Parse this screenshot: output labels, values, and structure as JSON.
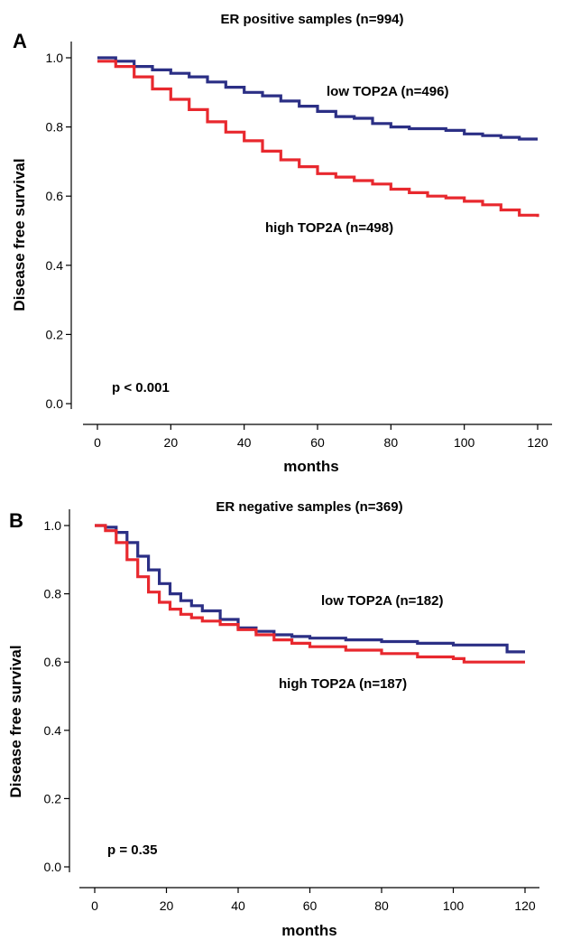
{
  "chart_data": [
    {
      "type": "line",
      "panel": "A",
      "title": "ER positive samples  (n=994)",
      "xlabel": "months",
      "ylabel": "Disease free survival",
      "xlim": [
        0,
        120
      ],
      "ylim": [
        0.0,
        1.0
      ],
      "xticks": [
        "0",
        "20",
        "40",
        "60",
        "80",
        "100",
        "120"
      ],
      "yticks": [
        "0.0",
        "0.2",
        "0.4",
        "0.6",
        "0.8",
        "1.0"
      ],
      "annotation": "p < 0.001",
      "grid": false,
      "series": [
        {
          "name": "low TOP2A  (n=496)",
          "color": "#2b2f85",
          "x": [
            0,
            5,
            10,
            15,
            20,
            25,
            30,
            35,
            40,
            45,
            50,
            55,
            60,
            65,
            70,
            75,
            80,
            85,
            90,
            95,
            100,
            105,
            110,
            115,
            120
          ],
          "y": [
            1.0,
            0.99,
            0.975,
            0.965,
            0.955,
            0.945,
            0.93,
            0.915,
            0.9,
            0.89,
            0.875,
            0.86,
            0.845,
            0.83,
            0.825,
            0.81,
            0.8,
            0.795,
            0.795,
            0.79,
            0.78,
            0.775,
            0.77,
            0.765,
            0.765
          ]
        },
        {
          "name": "high TOP2A  (n=498)",
          "color": "#e8282e",
          "x": [
            0,
            5,
            10,
            15,
            20,
            25,
            30,
            35,
            40,
            45,
            50,
            55,
            60,
            65,
            70,
            75,
            80,
            85,
            90,
            95,
            100,
            105,
            110,
            115,
            120
          ],
          "y": [
            0.99,
            0.975,
            0.945,
            0.91,
            0.88,
            0.85,
            0.815,
            0.785,
            0.76,
            0.73,
            0.705,
            0.685,
            0.665,
            0.655,
            0.645,
            0.635,
            0.62,
            0.61,
            0.6,
            0.595,
            0.585,
            0.575,
            0.56,
            0.545,
            0.54
          ]
        }
      ]
    },
    {
      "type": "line",
      "panel": "B",
      "title": "ER negative samples  (n=369)",
      "xlabel": "months",
      "ylabel": "Disease free survival",
      "xlim": [
        0,
        120
      ],
      "ylim": [
        0.0,
        1.0
      ],
      "xticks": [
        "0",
        "20",
        "40",
        "60",
        "80",
        "100",
        "120"
      ],
      "yticks": [
        "0.0",
        "0.2",
        "0.4",
        "0.6",
        "0.8",
        "1.0"
      ],
      "annotation": "p = 0.35",
      "grid": false,
      "series": [
        {
          "name": "low TOP2A  (n=182)",
          "color": "#2b2f85",
          "x": [
            0,
            3,
            6,
            9,
            12,
            15,
            18,
            21,
            24,
            27,
            30,
            35,
            40,
            45,
            50,
            55,
            60,
            70,
            80,
            90,
            100,
            110,
            115,
            120
          ],
          "y": [
            1.0,
            0.995,
            0.98,
            0.95,
            0.91,
            0.87,
            0.83,
            0.8,
            0.78,
            0.765,
            0.75,
            0.725,
            0.7,
            0.69,
            0.68,
            0.675,
            0.67,
            0.665,
            0.66,
            0.655,
            0.65,
            0.65,
            0.63,
            0.63
          ]
        },
        {
          "name": "high TOP2A  (n=187)",
          "color": "#e8282e",
          "x": [
            0,
            3,
            6,
            9,
            12,
            15,
            18,
            21,
            24,
            27,
            30,
            35,
            40,
            45,
            50,
            55,
            60,
            70,
            80,
            90,
            100,
            103,
            110,
            120
          ],
          "y": [
            1.0,
            0.985,
            0.95,
            0.9,
            0.85,
            0.805,
            0.775,
            0.755,
            0.74,
            0.73,
            0.72,
            0.71,
            0.695,
            0.68,
            0.665,
            0.655,
            0.645,
            0.635,
            0.625,
            0.615,
            0.61,
            0.6,
            0.6,
            0.6
          ]
        }
      ]
    }
  ]
}
